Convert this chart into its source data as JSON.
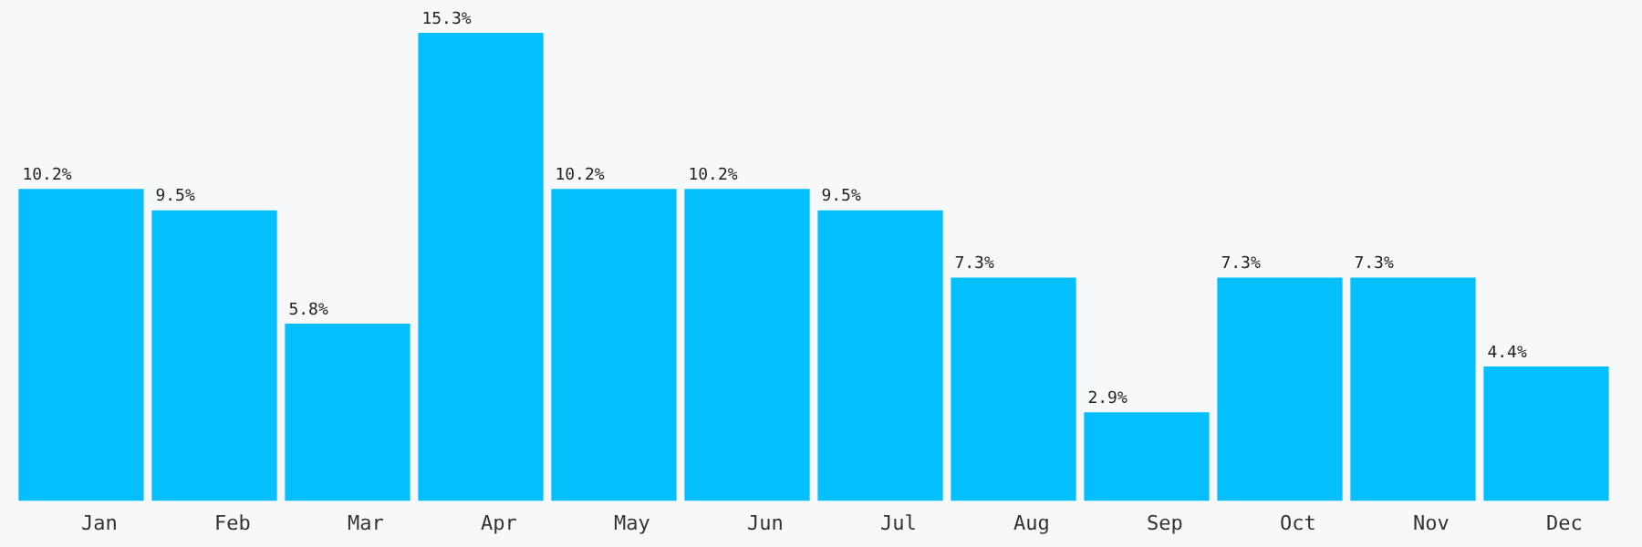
{
  "chart_data": {
    "type": "bar",
    "categories": [
      "Jan",
      "Feb",
      "Mar",
      "Apr",
      "May",
      "Jun",
      "Jul",
      "Aug",
      "Sep",
      "Oct",
      "Nov",
      "Dec"
    ],
    "values": [
      10.2,
      9.5,
      5.8,
      15.3,
      10.2,
      10.2,
      9.5,
      7.3,
      2.9,
      7.3,
      7.3,
      4.4
    ],
    "value_labels": [
      "10.2%",
      "9.5%",
      "5.8%",
      "15.3%",
      "10.2%",
      "10.2%",
      "9.5%",
      "7.3%",
      "2.9%",
      "7.3%",
      "7.3%",
      "4.4%"
    ],
    "color": "#03bffc",
    "grid": false,
    "legend": false
  }
}
